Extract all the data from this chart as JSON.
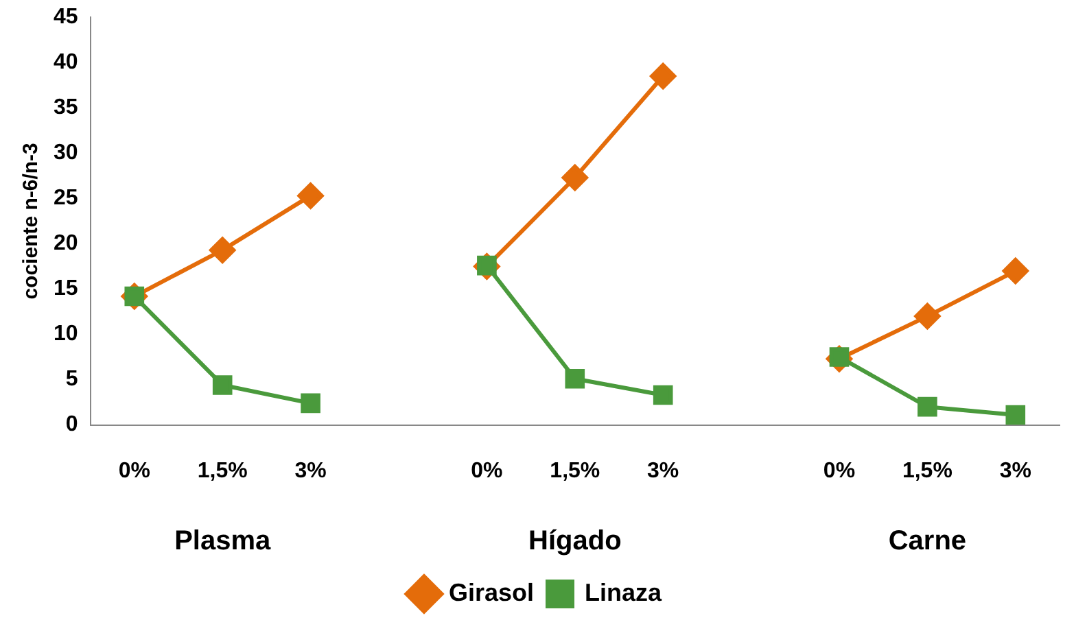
{
  "chart_data": {
    "type": "line",
    "ylabel": "cociente n-6/n-3",
    "categories": [
      "0%",
      "1,5%",
      "3%",
      null,
      "0%",
      "1,5%",
      "3%",
      null,
      "0%",
      "1,5%",
      "3%"
    ],
    "annotations": [
      "Plasma",
      "Hígado",
      "Carne"
    ],
    "series": [
      {
        "name": "Girasol",
        "color": "#e46c0a",
        "marker": "diamond",
        "values": [
          14.2,
          19.3,
          25.3,
          null,
          17.5,
          27.3,
          38.5,
          null,
          7.3,
          12,
          17
        ]
      },
      {
        "name": "Linaza",
        "color": "#4a9a3c",
        "marker": "square",
        "values": [
          14.2,
          4.4,
          2.4,
          null,
          17.6,
          5.1,
          3.3,
          null,
          7.5,
          2,
          1.1
        ]
      }
    ],
    "ylim": [
      0,
      45
    ],
    "yticks": [
      0,
      5,
      10,
      15,
      20,
      25,
      30,
      35,
      40,
      45
    ],
    "grid": false,
    "legend": "bottom"
  }
}
